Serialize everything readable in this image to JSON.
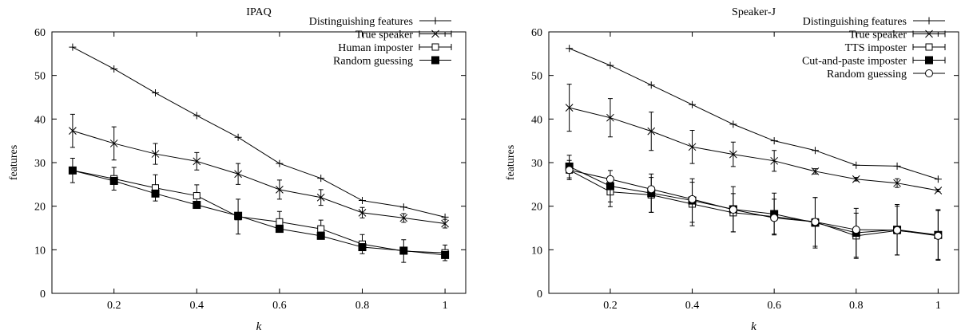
{
  "chart_data": [
    {
      "type": "line",
      "title": "IPAQ",
      "xlabel": "k",
      "ylabel": "features",
      "xlim": [
        0.05,
        1.05
      ],
      "ylim": [
        0,
        60
      ],
      "xticks": [
        0.2,
        0.4,
        0.6,
        0.8,
        1
      ],
      "xtick_labels": [
        "0.2",
        "0.4",
        "0.6",
        "0.8",
        "1"
      ],
      "yticks": [
        0,
        10,
        20,
        30,
        40,
        50,
        60
      ],
      "ytick_labels": [
        "0",
        "10",
        "20",
        "30",
        "40",
        "50",
        "60"
      ],
      "legend_position": "top-right",
      "grid": false,
      "x": [
        0.1,
        0.2,
        0.3,
        0.4,
        0.5,
        0.6,
        0.7,
        0.8,
        0.9,
        1.0
      ],
      "series": [
        {
          "name": "Distinguishing features",
          "marker": "plus",
          "errorbars": false,
          "values": [
            56.5,
            51.5,
            46.0,
            40.8,
            35.8,
            29.8,
            26.4,
            21.3,
            19.8,
            17.5
          ]
        },
        {
          "name": "True speaker",
          "marker": "x",
          "errorbars": true,
          "values": [
            37.3,
            34.4,
            32.0,
            30.3,
            27.4,
            23.8,
            22.0,
            18.5,
            17.3,
            16.0
          ],
          "err": [
            3.8,
            3.8,
            2.4,
            2.0,
            2.4,
            2.2,
            1.8,
            1.2,
            1.0,
            1.0
          ]
        },
        {
          "name": "Human imposter",
          "marker": "open-square",
          "errorbars": true,
          "values": [
            28.2,
            26.3,
            24.2,
            22.4,
            17.6,
            16.4,
            14.8,
            11.3,
            9.7,
            9.3
          ],
          "err": [
            2.8,
            2.6,
            3.0,
            2.5,
            4.0,
            2.4,
            2.0,
            2.2,
            2.6,
            1.8
          ]
        },
        {
          "name": "Random guessing",
          "marker": "filled-square",
          "errorbars": false,
          "values": [
            28.2,
            25.8,
            22.9,
            20.3,
            17.8,
            14.8,
            13.2,
            10.6,
            9.8,
            8.8
          ]
        }
      ]
    },
    {
      "type": "line",
      "title": "Speaker-J",
      "xlabel": "k",
      "ylabel": "features",
      "xlim": [
        0.05,
        1.05
      ],
      "ylim": [
        0,
        60
      ],
      "xticks": [
        0.2,
        0.4,
        0.6,
        0.8,
        1
      ],
      "xtick_labels": [
        "0.2",
        "0.4",
        "0.6",
        "0.8",
        "1"
      ],
      "yticks": [
        0,
        10,
        20,
        30,
        40,
        50,
        60
      ],
      "ytick_labels": [
        "0",
        "10",
        "20",
        "30",
        "40",
        "50",
        "60"
      ],
      "legend_position": "top-right",
      "grid": false,
      "x": [
        0.1,
        0.2,
        0.3,
        0.4,
        0.5,
        0.6,
        0.7,
        0.8,
        0.9,
        1.0
      ],
      "series": [
        {
          "name": "Distinguishing features",
          "marker": "plus",
          "errorbars": false,
          "values": [
            56.2,
            52.3,
            47.8,
            43.3,
            38.8,
            35.0,
            32.8,
            29.4,
            29.2,
            26.2
          ]
        },
        {
          "name": "True speaker",
          "marker": "x",
          "errorbars": true,
          "values": [
            42.6,
            40.3,
            37.2,
            33.6,
            31.9,
            30.4,
            28.0,
            26.2,
            25.3,
            23.6
          ],
          "err": [
            5.4,
            4.4,
            4.4,
            3.8,
            2.8,
            2.4,
            0.6,
            0.4,
            1.0,
            0.3
          ]
        },
        {
          "name": "TTS imposter",
          "marker": "open-square",
          "errorbars": true,
          "values": [
            28.3,
            23.3,
            22.6,
            20.5,
            18.5,
            17.6,
            16.4,
            13.2,
            14.4,
            13.4
          ],
          "err": [
            2.2,
            3.4,
            4.0,
            5.0,
            4.4,
            4.0,
            5.6,
            5.2,
            5.6,
            5.6
          ]
        },
        {
          "name": "Cut-and-paste imposter",
          "marker": "filled-square",
          "errorbars": true,
          "values": [
            29.1,
            24.6,
            23.0,
            21.3,
            19.3,
            18.2,
            16.2,
            13.9,
            14.6,
            13.4
          ],
          "err": [
            2.6,
            3.6,
            4.4,
            5.0,
            5.2,
            4.8,
            5.8,
            5.6,
            5.8,
            5.8
          ]
        },
        {
          "name": "Random guessing",
          "marker": "circle",
          "errorbars": false,
          "values": [
            28.3,
            26.2,
            23.9,
            21.6,
            19.2,
            17.3,
            16.4,
            14.6,
            14.5,
            13.2
          ]
        }
      ]
    }
  ]
}
